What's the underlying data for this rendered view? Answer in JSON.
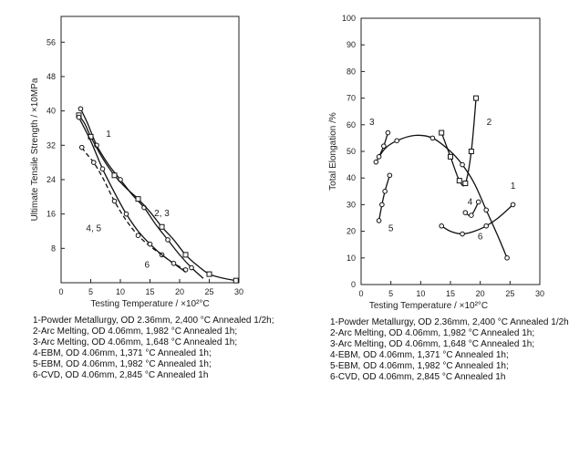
{
  "chart_data": [
    {
      "type": "line",
      "title": "",
      "xlabel": "Testing Temperature / ×10²°C",
      "ylabel": "Ultimate Tensile Strength / ×10MPa",
      "xlim": [
        0,
        30
      ],
      "ylim": [
        0,
        62
      ],
      "xticks": [
        0,
        5,
        10,
        15,
        20,
        25,
        30
      ],
      "yticks": [
        8,
        16,
        24,
        32,
        40,
        48,
        56
      ],
      "series": [
        {
          "name": "1",
          "style": "solid",
          "marker": "circle",
          "x": [
            3.3,
            4.5,
            6,
            8,
            10,
            12,
            14,
            16,
            18,
            20,
            22,
            24
          ],
          "y": [
            40.5,
            37,
            32,
            27.5,
            24,
            20.5,
            17.5,
            13.5,
            10,
            6.5,
            3.5,
            1
          ]
        },
        {
          "name": "2, 3",
          "style": "solid",
          "marker": "square",
          "x": [
            3,
            4,
            5,
            7,
            9,
            11,
            13,
            15,
            17,
            19,
            21,
            23,
            25,
            27.5,
            29.5
          ],
          "y": [
            39,
            37,
            34,
            29,
            25,
            22,
            19.5,
            16.5,
            13,
            10,
            6.5,
            4,
            2,
            1,
            0.5
          ]
        },
        {
          "name": "4, 5",
          "style": "dashed",
          "marker": "circle",
          "x": [
            3.5,
            4.3,
            5.5,
            7,
            9,
            11,
            13,
            15,
            17,
            19,
            21
          ],
          "y": [
            31.5,
            30,
            28,
            24.5,
            19,
            14.5,
            11,
            8.5,
            6.5,
            4.5,
            3
          ]
        },
        {
          "name": "6",
          "style": "solid",
          "marker": "circle",
          "x": [
            3,
            5,
            7,
            9,
            11,
            13,
            15,
            17,
            19,
            21
          ],
          "y": [
            38.5,
            33,
            26.5,
            21,
            16,
            12,
            9,
            6.5,
            4.5,
            2.5
          ]
        }
      ],
      "labels": [
        {
          "text": "1",
          "x": 8,
          "y": 34
        },
        {
          "text": "2, 3",
          "x": 17,
          "y": 15.5
        },
        {
          "text": "4, 5",
          "x": 5.5,
          "y": 12
        },
        {
          "text": "6",
          "x": 14.5,
          "y": 3.5
        }
      ],
      "legend_lines": [
        "1-Powder Metallurgy, OD 2.36mm, 2,400 °C Annealed 1/2h;",
        "2-Arc Melting, OD 4.06mm, 1,982 °C Annealed 1h;",
        "3-Arc Melting, OD 4.06mm, 1,648 °C Annealed 1h;",
        "4-EBM, OD 4.06mm, 1,371 °C Annealed 1h;",
        "5-EBM, OD 4.06mm, 1,982 °C Annealed 1h;",
        "6-CVD, OD 4.06mm, 2,845 °C Annealed 1h"
      ]
    },
    {
      "type": "line",
      "title": "",
      "xlabel": "Testing Temperature / ×10²°C",
      "ylabel": "Total Elongation /%",
      "xlim": [
        0,
        30
      ],
      "ylim": [
        0,
        100
      ],
      "xticks": [
        0,
        5,
        10,
        15,
        20,
        25,
        30
      ],
      "yticks": [
        0,
        10,
        20,
        30,
        40,
        50,
        60,
        70,
        80,
        90,
        100
      ],
      "series": [
        {
          "name": "1",
          "style": "solid",
          "marker": "circle",
          "x": [
            2.5,
            4,
            6,
            9,
            12,
            15,
            17,
            19,
            21,
            23,
            24.5
          ],
          "y": [
            46,
            51,
            54,
            56,
            55,
            50,
            45,
            38,
            28,
            18,
            10
          ]
        },
        {
          "name": "2",
          "style": "solid",
          "marker": "square",
          "x": [
            13.5,
            15,
            16.5,
            17.5,
            18.5,
            19.3
          ],
          "y": [
            57,
            48,
            39,
            38,
            50,
            70
          ]
        },
        {
          "name": "3",
          "style": "solid",
          "marker": "circle",
          "x": [
            3,
            3.8,
            4.5
          ],
          "y": [
            48,
            52,
            57
          ]
        },
        {
          "name": "4",
          "style": "solid",
          "marker": "circle",
          "x": [
            17.5,
            18.5,
            19.7
          ],
          "y": [
            27,
            26,
            31
          ]
        },
        {
          "name": "5",
          "style": "solid",
          "marker": "circle",
          "x": [
            3,
            3.5,
            4,
            4.8
          ],
          "y": [
            24,
            30,
            35,
            41
          ]
        },
        {
          "name": "6",
          "style": "solid",
          "marker": "circle",
          "x": [
            13.5,
            15,
            17,
            19,
            21,
            23,
            25.5
          ],
          "y": [
            22,
            20,
            19,
            20,
            22,
            25,
            30
          ]
        }
      ],
      "labels": [
        {
          "text": "1",
          "x": 25.5,
          "y": 36
        },
        {
          "text": "2",
          "x": 21.5,
          "y": 60
        },
        {
          "text": "3",
          "x": 1.8,
          "y": 60
        },
        {
          "text": "4",
          "x": 18.3,
          "y": 30
        },
        {
          "text": "5",
          "x": 5,
          "y": 20
        },
        {
          "text": "6",
          "x": 20,
          "y": 17
        }
      ],
      "legend_lines": [
        "1-Powder Metallurgy, OD 2.36mm, 2,400 °C Annealed 1/2h;",
        "2-Arc Melting, OD 4.06mm, 1,982 °C Annealed 1h;",
        "3-Arc Melting, OD 4.06mm, 1,648 °C Annealed 1h;",
        "4-EBM, OD 4.06mm, 1,371 °C Annealed 1h;",
        "5-EBM, OD 4.06mm, 1,982 °C Annealed 1h;",
        "6-CVD, OD 4.06mm, 2,845 °C Annealed 1h"
      ]
    }
  ]
}
